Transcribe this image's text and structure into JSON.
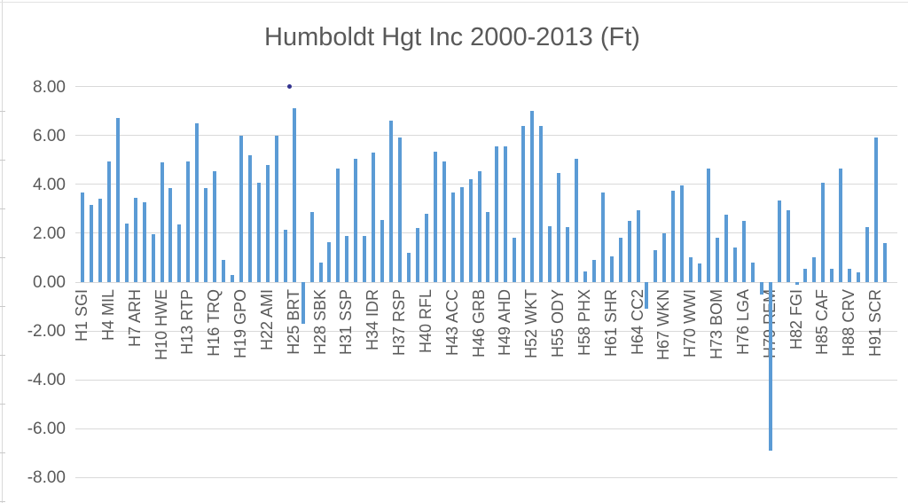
{
  "chart_data": {
    "type": "bar",
    "title": "Humboldt Hgt Inc 2000-2013 (Ft)",
    "xlabel": "",
    "ylabel": "",
    "ylim": [
      -8,
      8
    ],
    "grid": true,
    "legend": "none",
    "y_tick_labels": [
      "8.00",
      "6.00",
      "4.00",
      "2.00",
      "0.00",
      "-2.00",
      "-4.00",
      "-6.00",
      "-8.00"
    ],
    "y_tick_values": [
      8,
      6,
      4,
      2,
      0,
      -2,
      -4,
      -6,
      -8
    ],
    "n_bars": 92,
    "x_label_interval": 3,
    "x_tick_labels": [
      "H1 SGI",
      "H4 MIL",
      "H7 ARH",
      "H10 HWE",
      "H13 RTP",
      "H16 TRQ",
      "H19 GPO",
      "H22 AMI",
      "H25 BRT",
      "H28 SBK",
      "H31 SSP",
      "H34 IDR",
      "H37 RSP",
      "H40 RFL",
      "H43 ACC",
      "H46 GRB",
      "H49 AHD",
      "H52 WKT",
      "H55 ODY",
      "H58 PHX",
      "H61 SHR",
      "H64 CC2",
      "H67 WKN",
      "H70 WWI",
      "H73 BOM",
      "H76 LGA",
      "H79 REM",
      "H82 FGI",
      "H85 CAF",
      "H88 CRV",
      "H91 SCR"
    ],
    "values": [
      3.65,
      3.15,
      3.4,
      4.95,
      6.7,
      2.4,
      3.45,
      3.25,
      1.95,
      4.9,
      3.85,
      2.35,
      4.95,
      6.5,
      3.85,
      4.55,
      0.9,
      0.3,
      6.0,
      5.2,
      4.05,
      4.8,
      6.0,
      2.15,
      7.1,
      -1.7,
      2.85,
      0.8,
      1.65,
      4.65,
      1.9,
      5.05,
      1.9,
      5.3,
      2.55,
      6.6,
      5.9,
      1.2,
      2.2,
      2.8,
      5.35,
      4.95,
      3.65,
      3.9,
      4.2,
      4.55,
      2.85,
      5.55,
      5.55,
      1.8,
      6.4,
      7.0,
      6.4,
      2.3,
      4.45,
      2.25,
      5.05,
      0.45,
      0.9,
      3.65,
      1.05,
      1.8,
      2.5,
      2.95,
      -1.1,
      1.3,
      2.0,
      3.75,
      3.95,
      1.0,
      0.75,
      4.65,
      1.8,
      2.75,
      1.4,
      2.5,
      0.8,
      -0.5,
      -6.9,
      3.35,
      2.95,
      -0.1,
      0.55,
      1.0,
      4.05,
      0.55,
      4.65,
      0.55,
      0.4,
      2.25,
      5.9,
      1.6
    ],
    "stray_dot": {
      "value": 8.0,
      "between_bars": [
        24,
        25
      ],
      "color": "#33338F"
    },
    "bar_color": "#5B9BD5",
    "gridline_color": "#D9D9D9",
    "text_color": "#595959"
  }
}
